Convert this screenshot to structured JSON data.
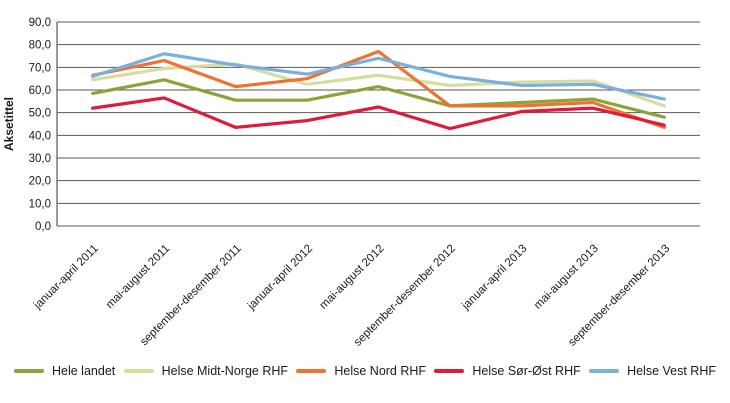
{
  "chart_data": {
    "type": "line",
    "title": "",
    "xlabel": "",
    "ylabel": "Aksetittel",
    "ylim": [
      0,
      90
    ],
    "y_tick_step": 10,
    "y_ticks": [
      "0,0",
      "10,0",
      "20,0",
      "30,0",
      "40,0",
      "50,0",
      "60,0",
      "70,0",
      "80,0",
      "90,0"
    ],
    "grid": "horizontal",
    "legend_position": "bottom",
    "categories": [
      "januar-april 2011",
      "mai-august 2011",
      "september-desember 2011",
      "januar-april 2012",
      "mai-august 2012",
      "september-desember 2012",
      "januar-april 2013",
      "mai-august 2013",
      "september-desember 2013"
    ],
    "series": [
      {
        "name": "Hele landet",
        "color": "#8CA33B",
        "values": [
          58.5,
          64.5,
          55.5,
          55.5,
          61.5,
          53.0,
          54.5,
          56.0,
          48.0
        ]
      },
      {
        "name": "Helse Midt-Norge RHF",
        "color": "#D7DC9F",
        "values": [
          64.5,
          69.5,
          71.5,
          62.5,
          66.5,
          62.0,
          63.5,
          64.0,
          53.0
        ]
      },
      {
        "name": "Helse Nord RHF",
        "color": "#EE7330",
        "values": [
          66.5,
          73.0,
          61.5,
          65.0,
          77.0,
          53.0,
          53.0,
          54.5,
          43.5
        ]
      },
      {
        "name": "Helse Sør-Øst RHF",
        "color": "#E01A3C",
        "values": [
          52.0,
          56.5,
          43.5,
          46.5,
          52.5,
          43.0,
          50.5,
          52.0,
          44.5
        ]
      },
      {
        "name": "Helse Vest RHF",
        "color": "#79B0DC",
        "values": [
          66.0,
          76.0,
          71.0,
          67.0,
          74.0,
          66.0,
          62.0,
          62.5,
          56.0
        ]
      }
    ],
    "style": {
      "gridline_color": "#595959",
      "axis_color": "#595959",
      "text_color": "#1a1a1a",
      "line_width": 3.2
    }
  }
}
